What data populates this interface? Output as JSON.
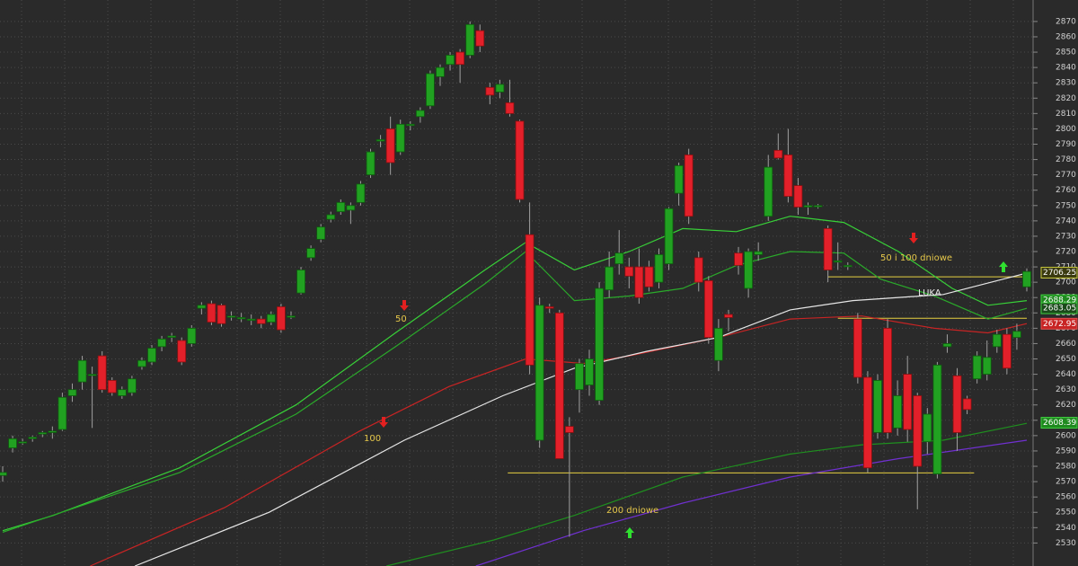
{
  "chart_data": {
    "type": "candlestick",
    "ylim": [
      2515,
      2884
    ],
    "yticks": [
      2530,
      2540,
      2550,
      2560,
      2570,
      2580,
      2590,
      2600,
      2610,
      2620,
      2630,
      2640,
      2650,
      2660,
      2670,
      2680,
      2690,
      2700,
      2710,
      2720,
      2730,
      2740,
      2750,
      2760,
      2770,
      2780,
      2790,
      2800,
      2810,
      2820,
      2830,
      2840,
      2850,
      2860,
      2870
    ],
    "grid": true,
    "up_color": "#21a121",
    "down_color": "#e3202a",
    "ohlc": [
      [
        2574,
        2580,
        2570,
        2576
      ],
      [
        2592,
        2600,
        2589,
        2598
      ],
      [
        2596,
        2598,
        2594,
        2596
      ],
      [
        2598,
        2600,
        2596,
        2599
      ],
      [
        2601,
        2603,
        2599,
        2602
      ],
      [
        2602,
        2606,
        2598,
        2603
      ],
      [
        2604,
        2628,
        2603,
        2625
      ],
      [
        2626,
        2634,
        2622,
        2630
      ],
      [
        2635,
        2652,
        2630,
        2649
      ],
      [
        2640,
        2645,
        2605,
        2640
      ],
      [
        2652,
        2655,
        2628,
        2630
      ],
      [
        2636,
        2638,
        2626,
        2628
      ],
      [
        2626,
        2632,
        2624,
        2630
      ],
      [
        2628,
        2639,
        2626,
        2637
      ],
      [
        2645,
        2651,
        2643,
        2649
      ],
      [
        2648,
        2659,
        2646,
        2657
      ],
      [
        2658,
        2665,
        2655,
        2663
      ],
      [
        2664,
        2667,
        2661,
        2665
      ],
      [
        2662,
        2664,
        2646,
        2648
      ],
      [
        2660,
        2672,
        2658,
        2670
      ],
      [
        2683,
        2687,
        2679,
        2685
      ],
      [
        2686,
        2688,
        2672,
        2674
      ],
      [
        2685,
        2686,
        2671,
        2673
      ],
      [
        2678,
        2681,
        2675,
        2678
      ],
      [
        2677,
        2680,
        2674,
        2677
      ],
      [
        2676,
        2679,
        2672,
        2676
      ],
      [
        2676,
        2678,
        2670,
        2673
      ],
      [
        2674,
        2681,
        2672,
        2679
      ],
      [
        2684,
        2686,
        2667,
        2669
      ],
      [
        2678,
        2681,
        2676,
        2678
      ],
      [
        2693,
        2710,
        2692,
        2708
      ],
      [
        2716,
        2724,
        2714,
        2722
      ],
      [
        2728,
        2738,
        2726,
        2736
      ],
      [
        2741,
        2746,
        2739,
        2744
      ],
      [
        2746,
        2754,
        2744,
        2752
      ],
      [
        2747,
        2752,
        2738,
        2750
      ],
      [
        2752,
        2766,
        2750,
        2764
      ],
      [
        2770,
        2787,
        2768,
        2785
      ],
      [
        2792,
        2796,
        2788,
        2793
      ],
      [
        2800,
        2808,
        2770,
        2778
      ],
      [
        2785,
        2806,
        2783,
        2803
      ],
      [
        2803,
        2805,
        2799,
        2803
      ],
      [
        2808,
        2814,
        2804,
        2812
      ],
      [
        2815,
        2838,
        2813,
        2836
      ],
      [
        2834,
        2842,
        2828,
        2840
      ],
      [
        2842,
        2850,
        2838,
        2848
      ],
      [
        2850,
        2852,
        2830,
        2842
      ],
      [
        2848,
        2870,
        2846,
        2868
      ],
      [
        2864,
        2868,
        2850,
        2854
      ],
      [
        2827,
        2830,
        2816,
        2822
      ],
      [
        2824,
        2832,
        2820,
        2829
      ],
      [
        2817,
        2832,
        2808,
        2810
      ],
      [
        2805,
        2806,
        2752,
        2754
      ],
      [
        2731,
        2752,
        2640,
        2646
      ],
      [
        2597,
        2690,
        2592,
        2685
      ],
      [
        2684,
        2686,
        2680,
        2683
      ],
      [
        2680,
        2682,
        2585,
        2585
      ],
      [
        2606,
        2612,
        2534,
        2602
      ],
      [
        2630,
        2650,
        2615,
        2647
      ],
      [
        2633,
        2656,
        2626,
        2650
      ],
      [
        2623,
        2700,
        2620,
        2696
      ],
      [
        2695,
        2720,
        2690,
        2710
      ],
      [
        2712,
        2734,
        2705,
        2719
      ],
      [
        2710,
        2716,
        2696,
        2704
      ],
      [
        2710,
        2722,
        2686,
        2690
      ],
      [
        2710,
        2714,
        2694,
        2697
      ],
      [
        2700,
        2722,
        2696,
        2718
      ],
      [
        2712,
        2749,
        2708,
        2748
      ],
      [
        2758,
        2778,
        2750,
        2776
      ],
      [
        2783,
        2787,
        2738,
        2743
      ],
      [
        2716,
        2720,
        2694,
        2700
      ],
      [
        2701,
        2704,
        2660,
        2664
      ],
      [
        2649,
        2676,
        2642,
        2670
      ],
      [
        2679,
        2682,
        2668,
        2677
      ],
      [
        2719,
        2723,
        2705,
        2711
      ],
      [
        2696,
        2722,
        2690,
        2720
      ],
      [
        2718,
        2726,
        2714,
        2720
      ],
      [
        2743,
        2783,
        2740,
        2775
      ],
      [
        2786,
        2797,
        2780,
        2781
      ],
      [
        2783,
        2800,
        2752,
        2756
      ],
      [
        2763,
        2768,
        2744,
        2749
      ],
      [
        2749,
        2752,
        2744,
        2750
      ],
      [
        2750,
        2751,
        2748,
        2750
      ],
      [
        2735,
        2737,
        2700,
        2708
      ],
      [
        2714,
        2726,
        2708,
        2714
      ],
      [
        2711,
        2713,
        2708,
        2711
      ],
      [
        2676,
        2680,
        2634,
        2638
      ],
      [
        2638,
        2642,
        2576,
        2579
      ],
      [
        2602,
        2640,
        2598,
        2636
      ],
      [
        2670,
        2676,
        2598,
        2602
      ],
      [
        2605,
        2636,
        2600,
        2626
      ],
      [
        2640,
        2652,
        2596,
        2604
      ],
      [
        2626,
        2628,
        2552,
        2580
      ],
      [
        2596,
        2618,
        2588,
        2614
      ],
      [
        2575,
        2648,
        2572,
        2646
      ],
      [
        2658,
        2666,
        2654,
        2660
      ],
      [
        2639,
        2644,
        2590,
        2602
      ],
      [
        2624,
        2626,
        2614,
        2617
      ],
      [
        2637,
        2655,
        2634,
        2652
      ],
      [
        2640,
        2662,
        2636,
        2651
      ],
      [
        2658,
        2669,
        2654,
        2666
      ],
      [
        2666,
        2670,
        2640,
        2644
      ],
      [
        2664,
        2673,
        2656,
        2668
      ],
      [
        2697,
        2709,
        2694,
        2707
      ]
    ],
    "series": [
      {
        "color": "#38d038",
        "x": [
          0,
          5.1,
          17.8,
          29.5,
          39.5,
          48.5,
          52.6,
          57.5,
          63,
          68.4,
          73.8,
          79.2,
          84.6,
          90.1,
          95.5,
          99.1,
          103
        ],
        "values": [
          2538,
          2548,
          2579,
          2620,
          2667,
          2708,
          2726,
          2708,
          2720,
          2735,
          2733,
          2743,
          2739,
          2720,
          2696,
          2685,
          2688
        ]
      },
      {
        "color": "#2aaa2a",
        "x": [
          0,
          17.8,
          29.5,
          39.5,
          48.5,
          52.6,
          57.5,
          63,
          68.4,
          73.8,
          79.2,
          84.6,
          88.3,
          93.7,
          99.1,
          103
        ],
        "values": [
          2537,
          2576,
          2614,
          2658,
          2699,
          2720,
          2688,
          2691,
          2696,
          2711,
          2720,
          2719,
          2702,
          2691,
          2676,
          2683
        ]
      },
      {
        "color": "#c82424",
        "x": [
          8.8,
          22.3,
          35.9,
          44.9,
          52.6,
          58.4,
          63,
          72,
          79.2,
          86.4,
          93.7,
          99.1,
          103
        ],
        "values": [
          2515,
          2553,
          2603,
          2632,
          2650,
          2647,
          2652,
          2664,
          2676,
          2678,
          2670,
          2667,
          2673
        ]
      },
      {
        "color": "#e6e6e6",
        "x": [
          13.3,
          26.8,
          40.4,
          50.3,
          57.5,
          64.8,
          72,
          79.2,
          85.5,
          94.6,
          103
        ],
        "values": [
          2515,
          2550,
          2597,
          2626,
          2644,
          2655,
          2664,
          2682,
          2688,
          2692,
          2706
        ]
      },
      {
        "color": "#1f8f1f",
        "x": [
          38.6,
          49.4,
          57.5,
          68.4,
          79.2,
          86.4,
          94.6,
          103
        ],
        "values": [
          2515,
          2532,
          2548,
          2573,
          2588,
          2594,
          2597,
          2608
        ]
      },
      {
        "color": "#7030d0",
        "x": [
          47.6,
          58.4,
          68.4,
          79.2,
          90.1,
          103
        ],
        "values": [
          2515,
          2538,
          2556,
          2573,
          2585,
          2597
        ]
      }
    ],
    "levels": [
      {
        "value": 2703.5,
        "x": [
          83,
          103
        ],
        "color": "#e6d040"
      },
      {
        "value": 2676.5,
        "x": [
          84,
          103
        ],
        "color": "#e6d040"
      },
      {
        "value": 2575.7,
        "x": [
          50.8,
          97.7
        ],
        "color": "#e6d040"
      }
    ],
    "price_labels": [
      {
        "value": 2706.25,
        "color": "#3a3a10",
        "border": "#c8c840"
      },
      {
        "value": 2688.29,
        "color": "#1e8a1e",
        "border": "#40d040"
      },
      {
        "value": 2683.05,
        "color": "#1a4a1a",
        "border": "#40d040"
      },
      {
        "value": 2672.95,
        "color": "#c82424",
        "border": "#e05050"
      },
      {
        "value": 2608.39,
        "color": "#1e8a1e",
        "border": "#40d040"
      }
    ],
    "annotations": [
      "50 i 100 dniowe",
      "LUKA",
      "50",
      "100",
      "200 dniowe"
    ]
  }
}
